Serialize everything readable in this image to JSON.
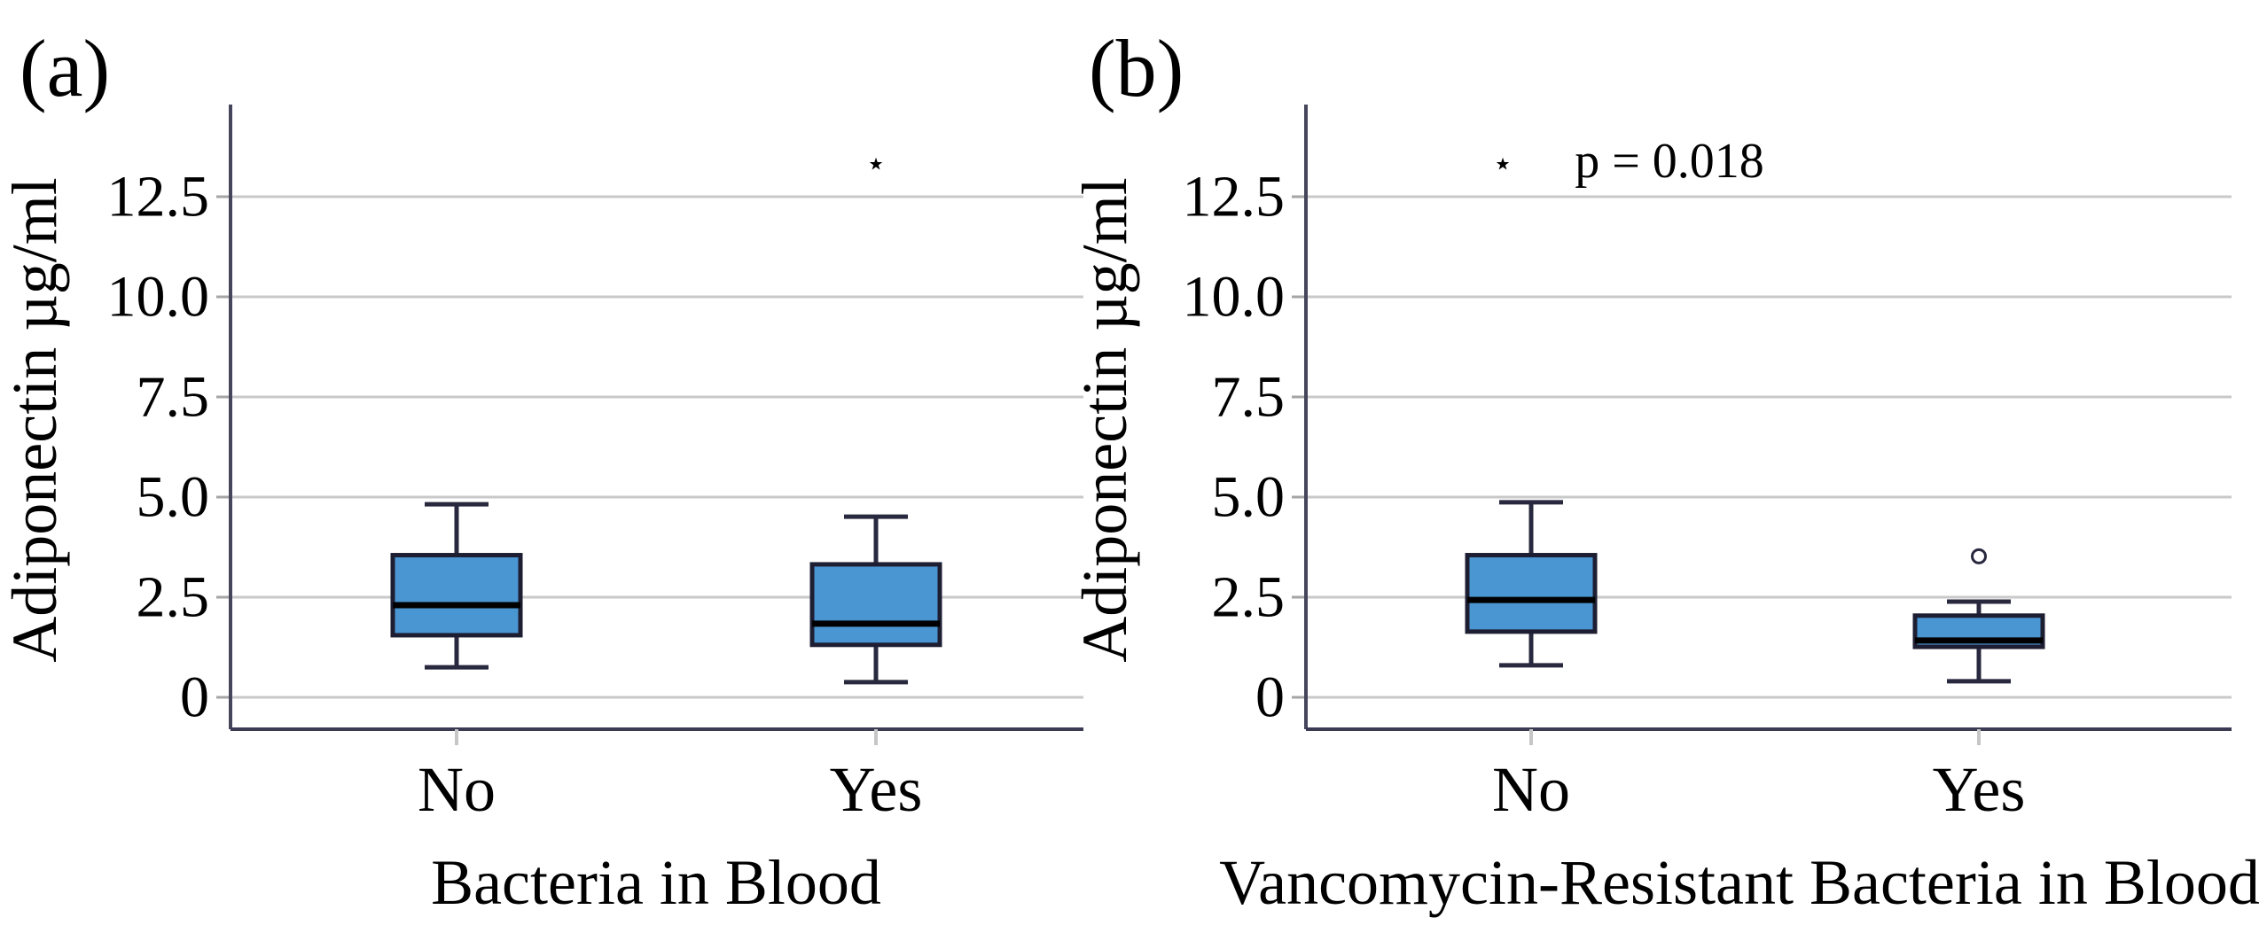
{
  "figure": {
    "background": "#ffffff",
    "colors": {
      "box_fill": "#4A96D2",
      "box_border": "#1E1E33",
      "median": "#000000",
      "whisker": "#28283F",
      "gridline": "#C9C9C9",
      "spine": "#45455C",
      "baseline": "#3A3A52",
      "y_tick": "#A5A5A5",
      "x_tick": "#C6C6C6",
      "text": "#000000"
    }
  },
  "chart_data": [
    {
      "type": "box",
      "panel_tag": "(a)",
      "ylabel": "Adiponectin µg/ml",
      "xlabel": "Bacteria in Blood",
      "annotation": "",
      "categories": [
        "No",
        "Yes"
      ],
      "ylim": [
        0,
        14.5
      ],
      "grid": "horizontal",
      "yticks": [
        {
          "value": 12.5,
          "label": "12.5"
        },
        {
          "value": 10.0,
          "label": "10.0"
        },
        {
          "value": 7.5,
          "label": "7.5"
        },
        {
          "value": 5.0,
          "label": "5.0"
        },
        {
          "value": 2.5,
          "label": "2.5"
        },
        {
          "value": 0,
          "label": "0"
        }
      ],
      "boxes": [
        {
          "category": "No",
          "min": 0.75,
          "q1": 1.55,
          "median": 2.3,
          "q3": 3.55,
          "max": 4.82,
          "outliers": []
        },
        {
          "category": "Yes",
          "min": 0.38,
          "q1": 1.31,
          "median": 1.84,
          "q3": 3.32,
          "max": 4.51,
          "outliers": [
            {
              "value": 13.3,
              "marker": "star"
            }
          ]
        }
      ]
    },
    {
      "type": "box",
      "panel_tag": "(b)",
      "ylabel": "Adiponectin µg/ml",
      "xlabel": "Vancomycin-Resistant Bacteria in Blood",
      "annotation": "p = 0.018",
      "categories": [
        "No",
        "Yes"
      ],
      "ylim": [
        0,
        14.5
      ],
      "grid": "horizontal",
      "yticks": [
        {
          "value": 12.5,
          "label": "12.5"
        },
        {
          "value": 10.0,
          "label": "10.0"
        },
        {
          "value": 7.5,
          "label": "7.5"
        },
        {
          "value": 5.0,
          "label": "5.0"
        },
        {
          "value": 2.5,
          "label": "2.5"
        },
        {
          "value": 0,
          "label": "0"
        }
      ],
      "boxes": [
        {
          "category": "No",
          "min": 0.8,
          "q1": 1.64,
          "median": 2.43,
          "q3": 3.55,
          "max": 4.87,
          "outliers": [
            {
              "value": 13.3,
              "marker": "star"
            }
          ]
        },
        {
          "category": "Yes",
          "min": 0.4,
          "q1": 1.26,
          "median": 1.42,
          "q3": 2.04,
          "max": 2.39,
          "outliers": [
            {
              "value": 3.52,
              "marker": "circle"
            }
          ]
        }
      ]
    }
  ]
}
